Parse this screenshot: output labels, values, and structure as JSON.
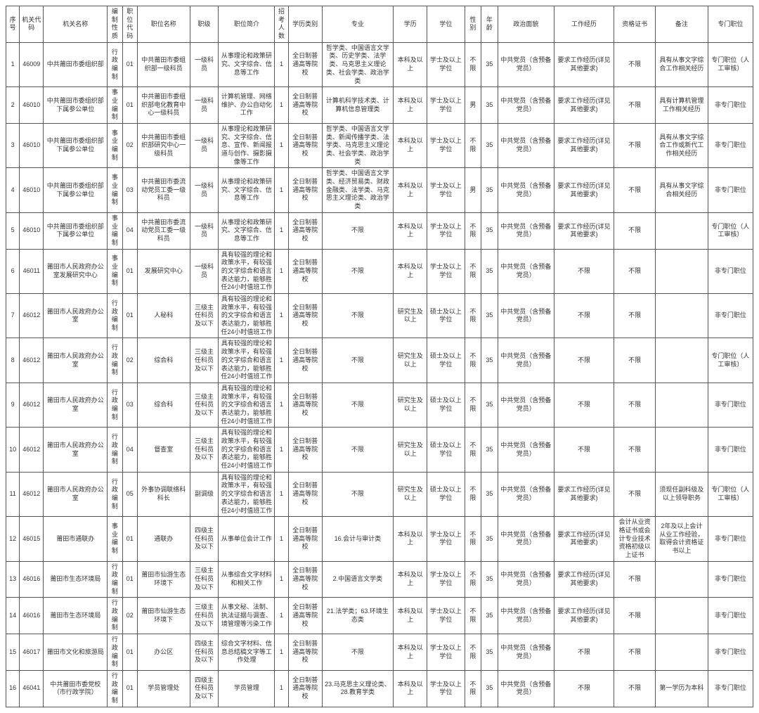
{
  "columns": [
    {
      "key": "seq",
      "label": "序号",
      "cls": "c-seq"
    },
    {
      "key": "code",
      "label": "机关代码",
      "cls": "c-code"
    },
    {
      "key": "org",
      "label": "机关名称",
      "cls": "c-org"
    },
    {
      "key": "btype",
      "label": "编制性质",
      "cls": "c-btype"
    },
    {
      "key": "pcode",
      "label": "职位代码",
      "cls": "c-pcode"
    },
    {
      "key": "pname",
      "label": "职位名称",
      "cls": "c-pname"
    },
    {
      "key": "rank",
      "label": "职级",
      "cls": "c-rank"
    },
    {
      "key": "desc",
      "label": "职位简介",
      "cls": "c-desc"
    },
    {
      "key": "num",
      "label": "招考人数",
      "cls": "c-num"
    },
    {
      "key": "edcat",
      "label": "学历类别",
      "cls": "c-edcat"
    },
    {
      "key": "major",
      "label": "专业",
      "cls": "c-major"
    },
    {
      "key": "edu",
      "label": "学历",
      "cls": "c-edu"
    },
    {
      "key": "deg",
      "label": "学位",
      "cls": "c-deg"
    },
    {
      "key": "sex",
      "label": "性别",
      "cls": "c-sex"
    },
    {
      "key": "age",
      "label": "年龄",
      "cls": "c-age"
    },
    {
      "key": "pol",
      "label": "政治面貌",
      "cls": "c-pol"
    },
    {
      "key": "exp",
      "label": "工作经历",
      "cls": "c-exp"
    },
    {
      "key": "cert",
      "label": "资格证书",
      "cls": "c-cert"
    },
    {
      "key": "rem",
      "label": "备注",
      "cls": "c-rem"
    },
    {
      "key": "spec",
      "label": "专门职位",
      "cls": "c-spec"
    }
  ],
  "rows": [
    {
      "seq": "1",
      "code": "46009",
      "org": "中共莆田市委组织部",
      "btype": "行政编制",
      "pcode": "01",
      "pname": "中共莆田市委组织部一级科员",
      "rank": "一级科员",
      "desc": "从事理论和政策研究、文字综合、信息等工作",
      "num": "1",
      "edcat": "全日制普通高等院校",
      "major": "哲学类、中国语言文学类、历史学类、法学类、马克思主义理论类、社会学类、政治学类",
      "edu": "本科及以上",
      "deg": "学士及以上学位",
      "sex": "不限",
      "age": "35",
      "pol": "中共党员（含预备党员）",
      "exp": "要求工作经历(详见其他要求)",
      "cert": "不限",
      "rem": "具有从事文字综合工作相关经历",
      "spec": "专门职位（人工审核）"
    },
    {
      "seq": "2",
      "code": "46010",
      "org": "中共莆田市委组织部下属参公单位",
      "btype": "事业编制",
      "pcode": "01",
      "pname": "中共莆田市委组织部电化教育中心一级科员",
      "rank": "一级科员",
      "desc": "计算机管理、网络维护、办公自动化工作",
      "num": "1",
      "edcat": "全日制普通高等院校",
      "major": "计算机科学技术类、计算机信息管理类",
      "edu": "本科及以上",
      "deg": "学士及以上学位",
      "sex": "男",
      "age": "35",
      "pol": "中共党员（含预备党员）",
      "exp": "要求工作经历(详见其他要求)",
      "cert": "不限",
      "rem": "具有计算机管理工作相关经历",
      "spec": "非专门职位"
    },
    {
      "seq": "3",
      "code": "46010",
      "org": "中共莆田市委组织部下属参公单位",
      "btype": "事业编制",
      "pcode": "02",
      "pname": "中共莆田市委组织部研究中心一级科员",
      "rank": "一级科员",
      "desc": "从事理论和政策研究、文字综合、信息、宣传、新闻报道与创作、摄影摄像等工作",
      "num": "1",
      "edcat": "全日制普通高等院校",
      "major": "哲学类、中国语言文学类、新闻传播学类、法学类、马克思主义理论类、社会学类、政治学类",
      "edu": "本科及以上",
      "deg": "学士及以上学位",
      "sex": "不限",
      "age": "35",
      "pol": "中共党员（含预备党员）",
      "exp": "要求工作经历(详见其他要求)",
      "cert": "不限",
      "rem": "具有从事文字综合工作或新代工作相关经历",
      "spec": "非专门职位"
    },
    {
      "seq": "4",
      "code": "46010",
      "org": "中共莆田市委组织部下属参公单位",
      "btype": "事业编制",
      "pcode": "03",
      "pname": "中共莆田市委流动党员工委一级科员",
      "rank": "一级科员",
      "desc": "从事理论和政策研究、文字综合、信息等工作",
      "num": "1",
      "edcat": "全日制普通高等院校",
      "major": "哲学类、中国语言文学类、经济贸易类、财政金融类、法学类、马克思主义理论类、政治学类",
      "edu": "本科及以上",
      "deg": "学士及以上学位",
      "sex": "男",
      "age": "35",
      "pol": "中共党员（含预备党员）",
      "exp": "要求工作经历(详见其他要求)",
      "cert": "不限",
      "rem": "具有从事文字综合相关经历",
      "spec": "非专门职位"
    },
    {
      "seq": "5",
      "code": "46010",
      "org": "中共莆田市委组织部下属参公单位",
      "btype": "事业编制",
      "pcode": "04",
      "pname": "中共莆田市委流动党员工委一级科员",
      "rank": "一级科员",
      "desc": "从事理论和政策研究、文字综合、信息等工作",
      "num": "1",
      "edcat": "全日制普通高等院校",
      "major": "不限",
      "edu": "本科及以上",
      "deg": "学士及以上学位",
      "sex": "不限",
      "age": "35",
      "pol": "中共党员（含预备党员）",
      "exp": "要求工作经历(详见其他要求)",
      "cert": "不限",
      "rem": "",
      "spec": "专门职位（人工审核）"
    },
    {
      "seq": "6",
      "code": "46011",
      "org": "莆田市人民政府办公室发展研究中心",
      "btype": "事业编制",
      "pcode": "01",
      "pname": "发展研究中心",
      "rank": "一级科员",
      "desc": "具有较强的理论和政策水平，有较强的文字综合和语言表达能力，能够胜任24小时值班工作",
      "num": "1",
      "edcat": "全日制普通高等院校",
      "major": "不限",
      "edu": "本科及以上",
      "deg": "学士及以上学位",
      "sex": "不限",
      "age": "35",
      "pol": "中共党员（含预备党员）",
      "exp": "不限",
      "cert": "不限",
      "rem": "",
      "spec": "非专门职位"
    },
    {
      "seq": "7",
      "code": "46012",
      "org": "莆田市人民政府办公室",
      "btype": "行政编制",
      "pcode": "01",
      "pname": "人秘科",
      "rank": "三级主任科员及以下",
      "desc": "具有较强的理论和政策水平，有较强的文字综合和语言表达能力，能够胜任24小时值班工作",
      "num": "1",
      "edcat": "全日制普通高等院校",
      "major": "不限",
      "edu": "研究生及以上",
      "deg": "硕士及以上学位",
      "sex": "不限",
      "age": "35",
      "pol": "中共党员（含预备党员）",
      "exp": "不限",
      "cert": "不限",
      "rem": "",
      "spec": "非专门职位"
    },
    {
      "seq": "8",
      "code": "46012",
      "org": "莆田市人民政府办公室",
      "btype": "行政编制",
      "pcode": "02",
      "pname": "综合科",
      "rank": "三级主任科员及以下",
      "desc": "具有较强的理论和政策水平，有较强的文字综合和语言表达能力，能够胜任24小时值班工作",
      "num": "1",
      "edcat": "全日制普通高等院校",
      "major": "不限",
      "edu": "研究生及以上",
      "deg": "硕士及以上学位",
      "sex": "不限",
      "age": "35",
      "pol": "中共党员（含预备党员）",
      "exp": "不限",
      "cert": "不限",
      "rem": "",
      "spec": "专门职位（人工审核）"
    },
    {
      "seq": "9",
      "code": "46012",
      "org": "莆田市人民政府办公室",
      "btype": "行政编制",
      "pcode": "03",
      "pname": "综合科",
      "rank": "三级主任科员及以下",
      "desc": "具有较强的理论和政策水平，有较强的文字综合和语言表达能力，能够胜任24小时值班工作",
      "num": "1",
      "edcat": "全日制普通高等院校",
      "major": "不限",
      "edu": "研究生及以上",
      "deg": "硕士及以上学位",
      "sex": "不限",
      "age": "35",
      "pol": "中共党员（含预备党员）",
      "exp": "不限",
      "cert": "不限",
      "rem": "",
      "spec": "非专门职位"
    },
    {
      "seq": "10",
      "code": "46012",
      "org": "莆田市人民政府办公室",
      "btype": "行政编制",
      "pcode": "04",
      "pname": "督查室",
      "rank": "三级主任科员及以下",
      "desc": "具有较强的理论和政策水平，有较强的文字综合和语言表达能力，能够胜任24小时值班工作",
      "num": "1",
      "edcat": "全日制普通高等院校",
      "major": "不限",
      "edu": "研究生及以上",
      "deg": "硕士及以上学位",
      "sex": "不限",
      "age": "35",
      "pol": "中共党员（含预备党员）",
      "exp": "不限",
      "cert": "不限",
      "rem": "",
      "spec": "非专门职位"
    },
    {
      "seq": "11",
      "code": "46012",
      "org": "莆田市人民政府办公室",
      "btype": "行政编制",
      "pcode": "05",
      "pname": "外事协调联络科科长",
      "rank": "副调级",
      "desc": "具有较强的理论和政策水平，有较强的文字综合和语言表达能力，能够胜任24小时值班工作",
      "num": "1",
      "edcat": "全日制普通高等院校",
      "major": "不限",
      "edu": "研究生及以上",
      "deg": "硕士及以上学位",
      "sex": "不限",
      "age": "35",
      "pol": "中共党员（含预备党员）",
      "exp": "要求工作经历(详见其他要求)",
      "cert": "不限",
      "rem": "须现任副科级及以上领导职务",
      "spec": "专门职位（人工审核）"
    },
    {
      "seq": "12",
      "code": "46015",
      "org": "莆田市通联办",
      "btype": "事业编制",
      "pcode": "01",
      "pname": "通联办",
      "rank": "四级主任科员及以下",
      "desc": "从事单位会计工作",
      "num": "1",
      "edcat": "全日制普通高等院校",
      "major": "16.会计与审计类",
      "edu": "本科及以上",
      "deg": "学士及以上学位",
      "sex": "不限",
      "age": "35",
      "pol": "中共党员（含预备党员）",
      "exp": "要求工作经历(详见其他要求)",
      "cert": "会计从业资格证书或会计专业技术资格初级以上证书",
      "rem": "2年及以上会计从业工作经验，取得会计资格证书以上",
      "spec": "非专门职位"
    },
    {
      "seq": "13",
      "code": "46016",
      "org": "莆田市生态环境局",
      "btype": "行政编制",
      "pcode": "01",
      "pname": "莆田市仙游生态环境下",
      "rank": "三级主任科员及以下",
      "desc": "从事综合文字材料和相关工作",
      "num": "1",
      "edcat": "全日制普通高等院校",
      "major": "2.中国语言文学类",
      "edu": "本科及以上",
      "deg": "学士及以上学位",
      "sex": "不限",
      "age": "35",
      "pol": "中共党员（含预备党员）",
      "exp": "要求工作经历(详见其他要求)",
      "cert": "不限",
      "rem": "",
      "spec": "非专门职位"
    },
    {
      "seq": "14",
      "code": "46016",
      "org": "莆田市生态环境局",
      "btype": "行政编制",
      "pcode": "02",
      "pname": "莆田市仙游生态环境下",
      "rank": "三级主任科员及以下",
      "desc": "从事文秘、法制、执法证据与调查、境管理等污染工作",
      "num": "1",
      "edcat": "全日制普通高等院校",
      "major": "21.法学类；63.环境生态类",
      "edu": "本科及以上",
      "deg": "学士及以上学位",
      "sex": "不限",
      "age": "35",
      "pol": "中共党员（含预备党员）",
      "exp": "要求工作经历(详见其他要求)",
      "cert": "不限",
      "rem": "",
      "spec": "非专门职位"
    },
    {
      "seq": "15",
      "code": "46017",
      "org": "莆田市文化和旅游局",
      "btype": "行政编制",
      "pcode": "01",
      "pname": "办公区",
      "rank": "四级主任科员及以下",
      "desc": "综合文字材料、信息总结稿文字等工作处理",
      "num": "1",
      "edcat": "全日制普通高等院校",
      "major": "不限",
      "edu": "本科及以上",
      "deg": "学士及以上学位",
      "sex": "不限",
      "age": "35",
      "pol": "中共党员（含预备党员）",
      "exp": "不限",
      "cert": "不限",
      "rem": "",
      "spec": "非专门职位"
    },
    {
      "seq": "16",
      "code": "46041",
      "org": "中共莆田市委党校（市行政学院）",
      "btype": "行政编制",
      "pcode": "01",
      "pname": "学员管理处",
      "rank": "四级主任科员及以下",
      "desc": "学员管理",
      "num": "1",
      "edcat": "全日制普通高等院校",
      "major": "23.马克思主义理论类、28.教育学类",
      "edu": "本科及以上",
      "deg": "学士及以上学位",
      "sex": "不限",
      "age": "35",
      "pol": "中共党员（含预备党员）",
      "exp": "不限",
      "cert": "不限",
      "rem": "第一学历为本科",
      "spec": "非专门职位"
    }
  ]
}
